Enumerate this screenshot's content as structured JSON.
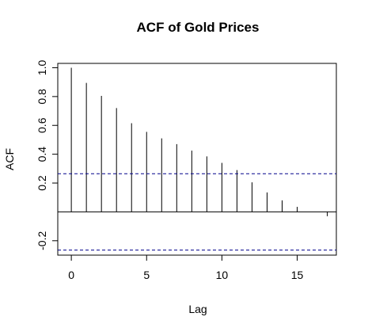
{
  "chart_data": {
    "type": "bar",
    "title": "ACF of Gold Prices",
    "xlabel": "Lag",
    "ylabel": "ACF",
    "x": [
      0,
      1,
      2,
      3,
      4,
      5,
      6,
      7,
      8,
      9,
      10,
      11,
      12,
      13,
      14,
      15,
      16,
      17
    ],
    "values": [
      1.0,
      0.895,
      0.805,
      0.72,
      0.615,
      0.555,
      0.51,
      0.47,
      0.425,
      0.385,
      0.34,
      0.29,
      0.205,
      0.135,
      0.08,
      0.035,
      0.0,
      -0.03
    ],
    "confidence_bound": 0.265,
    "xlim": [
      -0.9,
      17.6
    ],
    "ylim": [
      -0.3,
      1.03
    ],
    "x_ticks": [
      0,
      5,
      10,
      15
    ],
    "x_tick_labels": [
      "0",
      "5",
      "10",
      "15"
    ],
    "y_ticks": [
      -0.2,
      0.2,
      0.4,
      0.6,
      0.8,
      1.0
    ],
    "y_tick_labels": [
      "-0.2",
      "0.2",
      "0.4",
      "0.6",
      "0.8",
      "1.0"
    ],
    "colors": {
      "bars": "#000000",
      "confidence": "#00008b",
      "zero_line": "#000000"
    }
  }
}
